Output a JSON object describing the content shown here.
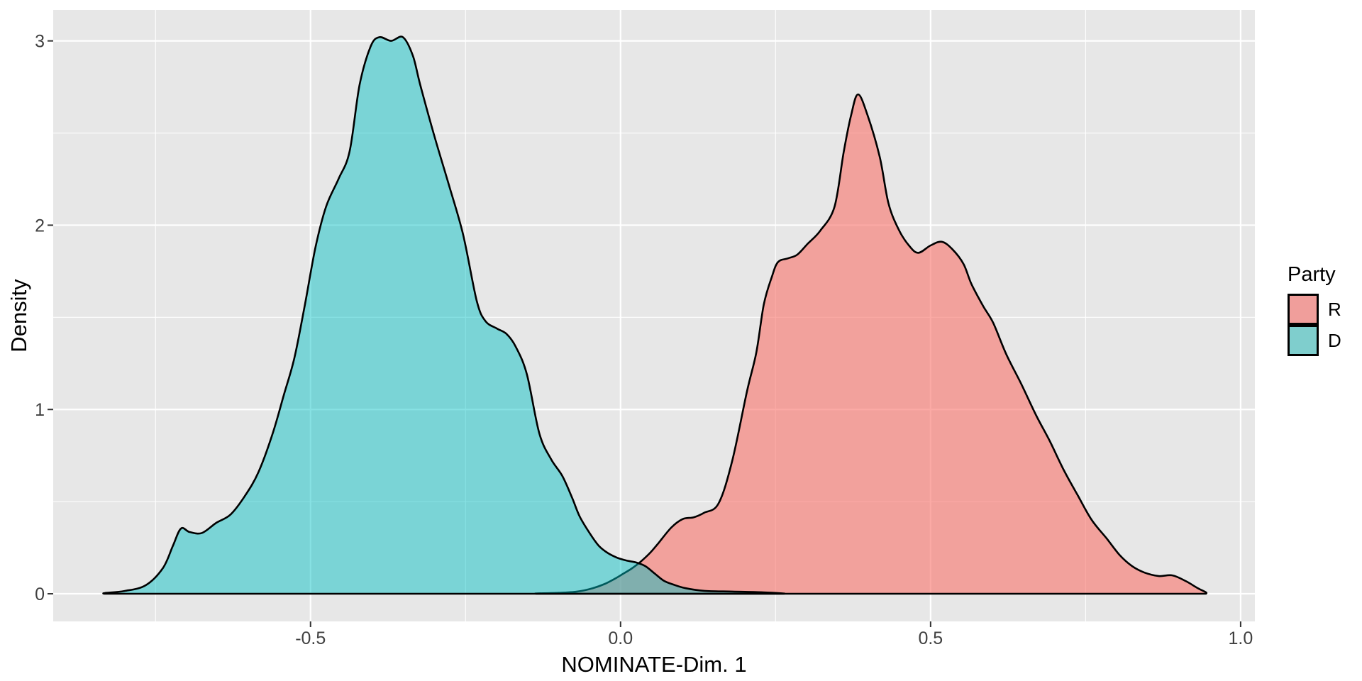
{
  "figure": {
    "background": "#FFFFFF",
    "panel_bg": "#E7E7E7",
    "grid_color": "#FFFFFF",
    "tick_color": "#333333",
    "tick_label_color": "#404040"
  },
  "chart_data": {
    "type": "area",
    "subtype": "density",
    "title": "",
    "xlabel": "NOMINATE-Dim. 1",
    "ylabel": "Density",
    "xlim": [
      -0.915,
      1.023
    ],
    "ylim": [
      -0.15,
      3.168
    ],
    "grid": "on",
    "x_major_ticks": [
      -0.5,
      0.0,
      0.5,
      1.0
    ],
    "x_tick_labels": [
      "-0.5",
      "0.0",
      "0.5",
      "1.0"
    ],
    "x_minor_ticks": [
      -0.75,
      -0.25,
      0.25,
      0.75
    ],
    "y_major_ticks": [
      0,
      1,
      2,
      3
    ],
    "y_tick_labels": [
      "0",
      "1",
      "2",
      "3"
    ],
    "y_minor_ticks": [
      0.5,
      1.5,
      2.5
    ],
    "legend": {
      "title": "Party",
      "position": "right",
      "entries": [
        {
          "label": "R",
          "swatch": "#F09E9B",
          "base_color": "#F8766D"
        },
        {
          "label": "D",
          "swatch": "#7FCECD",
          "base_color": "#00BFC4"
        }
      ]
    },
    "series": [
      {
        "name": "R",
        "fill": "rgba(248,118,109,0.62)",
        "stroke": "#000000",
        "points": [
          [
            -0.135,
            0.002
          ],
          [
            -0.1,
            0.005
          ],
          [
            -0.07,
            0.012
          ],
          [
            -0.045,
            0.03
          ],
          [
            -0.025,
            0.054
          ],
          [
            -0.01,
            0.08
          ],
          [
            0.002,
            0.104
          ],
          [
            0.017,
            0.135
          ],
          [
            0.032,
            0.173
          ],
          [
            0.047,
            0.22
          ],
          [
            0.06,
            0.27
          ],
          [
            0.082,
            0.36
          ],
          [
            0.1,
            0.405
          ],
          [
            0.118,
            0.415
          ],
          [
            0.135,
            0.44
          ],
          [
            0.158,
            0.49
          ],
          [
            0.18,
            0.72
          ],
          [
            0.204,
            1.1
          ],
          [
            0.219,
            1.31
          ],
          [
            0.231,
            1.57
          ],
          [
            0.244,
            1.72
          ],
          [
            0.254,
            1.8
          ],
          [
            0.27,
            1.82
          ],
          [
            0.285,
            1.84
          ],
          [
            0.302,
            1.9
          ],
          [
            0.322,
            1.97
          ],
          [
            0.345,
            2.1
          ],
          [
            0.36,
            2.4
          ],
          [
            0.372,
            2.6
          ],
          [
            0.383,
            2.71
          ],
          [
            0.398,
            2.6
          ],
          [
            0.418,
            2.37
          ],
          [
            0.432,
            2.12
          ],
          [
            0.448,
            1.98
          ],
          [
            0.465,
            1.89
          ],
          [
            0.48,
            1.85
          ],
          [
            0.5,
            1.89
          ],
          [
            0.518,
            1.91
          ],
          [
            0.535,
            1.87
          ],
          [
            0.553,
            1.79
          ],
          [
            0.566,
            1.68
          ],
          [
            0.585,
            1.56
          ],
          [
            0.601,
            1.47
          ],
          [
            0.622,
            1.3
          ],
          [
            0.646,
            1.14
          ],
          [
            0.67,
            0.97
          ],
          [
            0.692,
            0.83
          ],
          [
            0.715,
            0.67
          ],
          [
            0.738,
            0.53
          ],
          [
            0.76,
            0.4
          ],
          [
            0.784,
            0.3
          ],
          [
            0.805,
            0.21
          ],
          [
            0.825,
            0.15
          ],
          [
            0.845,
            0.115
          ],
          [
            0.868,
            0.096
          ],
          [
            0.89,
            0.1
          ],
          [
            0.912,
            0.068
          ],
          [
            0.93,
            0.032
          ],
          [
            0.944,
            0.008
          ]
        ]
      },
      {
        "name": "D",
        "fill": "rgba(0,191,196,0.47)",
        "stroke": "#000000",
        "points": [
          [
            -0.832,
            0.004
          ],
          [
            -0.8,
            0.015
          ],
          [
            -0.766,
            0.046
          ],
          [
            -0.738,
            0.14
          ],
          [
            -0.722,
            0.26
          ],
          [
            -0.709,
            0.354
          ],
          [
            -0.695,
            0.335
          ],
          [
            -0.675,
            0.33
          ],
          [
            -0.652,
            0.385
          ],
          [
            -0.629,
            0.43
          ],
          [
            -0.606,
            0.53
          ],
          [
            -0.584,
            0.66
          ],
          [
            -0.561,
            0.87
          ],
          [
            -0.543,
            1.08
          ],
          [
            -0.526,
            1.28
          ],
          [
            -0.509,
            1.57
          ],
          [
            -0.492,
            1.88
          ],
          [
            -0.475,
            2.1
          ],
          [
            -0.455,
            2.25
          ],
          [
            -0.437,
            2.4
          ],
          [
            -0.421,
            2.76
          ],
          [
            -0.403,
            2.97
          ],
          [
            -0.389,
            3.02
          ],
          [
            -0.37,
            3.0
          ],
          [
            -0.351,
            3.02
          ],
          [
            -0.335,
            2.92
          ],
          [
            -0.323,
            2.76
          ],
          [
            -0.3,
            2.48
          ],
          [
            -0.277,
            2.22
          ],
          [
            -0.254,
            1.95
          ],
          [
            -0.232,
            1.59
          ],
          [
            -0.218,
            1.48
          ],
          [
            -0.2,
            1.44
          ],
          [
            -0.184,
            1.41
          ],
          [
            -0.169,
            1.34
          ],
          [
            -0.151,
            1.19
          ],
          [
            -0.131,
            0.87
          ],
          [
            -0.112,
            0.73
          ],
          [
            -0.094,
            0.64
          ],
          [
            -0.078,
            0.52
          ],
          [
            -0.066,
            0.42
          ],
          [
            -0.05,
            0.33
          ],
          [
            -0.035,
            0.26
          ],
          [
            -0.02,
            0.22
          ],
          [
            -0.005,
            0.195
          ],
          [
            0.01,
            0.18
          ],
          [
            0.025,
            0.17
          ],
          [
            0.04,
            0.15
          ],
          [
            0.055,
            0.11
          ],
          [
            0.07,
            0.07
          ],
          [
            0.085,
            0.05
          ],
          [
            0.105,
            0.03
          ],
          [
            0.135,
            0.016
          ],
          [
            0.18,
            0.012
          ],
          [
            0.23,
            0.008
          ],
          [
            0.262,
            0.002
          ]
        ]
      }
    ]
  }
}
